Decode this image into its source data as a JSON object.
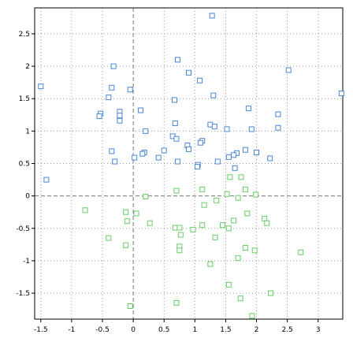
{
  "chart_data": {
    "type": "scatter",
    "title": "",
    "xlabel": "",
    "ylabel": "",
    "xlim": [
      -1.6,
      3.4
    ],
    "ylim": [
      -1.9,
      2.9
    ],
    "x_ticks": [
      -1.5,
      -1,
      -0.5,
      0,
      0.5,
      1,
      1.5,
      2,
      2.5,
      3
    ],
    "x_tick_labels": [
      "-1.5",
      "-1",
      "-0.5",
      "0",
      "0.5",
      "1",
      "1.5",
      "2",
      "2.5",
      "3"
    ],
    "y_ticks": [
      -1.5,
      -1,
      -0.5,
      0,
      0.5,
      1,
      1.5,
      2,
      2.5
    ],
    "y_tick_labels": [
      "-1.5",
      "-1",
      "-0.5",
      "0",
      "0.5",
      "1",
      "1.5",
      "2",
      "2.5"
    ],
    "grid": true,
    "marker": "square-open",
    "series": [
      {
        "color": "#4a86d4",
        "points": [
          [
            1.28,
            2.78
          ],
          [
            0.72,
            2.1
          ],
          [
            -0.32,
            2.0
          ],
          [
            0.9,
            1.9
          ],
          [
            2.52,
            1.94
          ],
          [
            1.08,
            1.78
          ],
          [
            -1.5,
            1.69
          ],
          [
            -0.35,
            1.67
          ],
          [
            -0.05,
            1.64
          ],
          [
            -0.4,
            1.52
          ],
          [
            1.3,
            1.55
          ],
          [
            3.38,
            1.58
          ],
          [
            0.67,
            1.48
          ],
          [
            1.87,
            1.35
          ],
          [
            0.12,
            1.32
          ],
          [
            -0.22,
            1.3
          ],
          [
            2.35,
            1.26
          ],
          [
            -0.22,
            1.24
          ],
          [
            -0.53,
            1.27
          ],
          [
            -0.55,
            1.23
          ],
          [
            -0.22,
            1.16
          ],
          [
            0.68,
            1.12
          ],
          [
            1.25,
            1.1
          ],
          [
            1.32,
            1.07
          ],
          [
            1.52,
            1.03
          ],
          [
            2.35,
            1.05
          ],
          [
            1.92,
            1.03
          ],
          [
            0.2,
            1.0
          ],
          [
            0.64,
            0.92
          ],
          [
            0.7,
            0.88
          ],
          [
            1.12,
            0.85
          ],
          [
            1.09,
            0.82
          ],
          [
            0.88,
            0.78
          ],
          [
            0.9,
            0.72
          ],
          [
            1.82,
            0.71
          ],
          [
            0.5,
            0.7
          ],
          [
            2.0,
            0.67
          ],
          [
            1.68,
            0.66
          ],
          [
            1.63,
            0.63
          ],
          [
            1.55,
            0.6
          ],
          [
            0.18,
            0.67
          ],
          [
            0.15,
            0.65
          ],
          [
            0.02,
            0.59
          ],
          [
            0.41,
            0.59
          ],
          [
            0.72,
            0.53
          ],
          [
            1.05,
            0.48
          ],
          [
            1.04,
            0.45
          ],
          [
            1.37,
            0.53
          ],
          [
            1.65,
            0.43
          ],
          [
            2.22,
            0.58
          ],
          [
            -0.35,
            0.69
          ],
          [
            -0.3,
            0.53
          ],
          [
            -1.41,
            0.25
          ]
        ]
      },
      {
        "color": "#66cc66",
        "points": [
          [
            1.57,
            0.29
          ],
          [
            1.75,
            0.29
          ],
          [
            0.7,
            0.08
          ],
          [
            1.12,
            0.1
          ],
          [
            1.82,
            0.1
          ],
          [
            1.52,
            0.03
          ],
          [
            1.99,
            0.02
          ],
          [
            0.2,
            -0.01
          ],
          [
            1.35,
            -0.07
          ],
          [
            1.7,
            -0.03
          ],
          [
            1.15,
            -0.14
          ],
          [
            -0.78,
            -0.22
          ],
          [
            -0.12,
            -0.25
          ],
          [
            0.05,
            -0.27
          ],
          [
            1.85,
            -0.27
          ],
          [
            2.13,
            -0.35
          ],
          [
            2.17,
            -0.42
          ],
          [
            1.63,
            -0.38
          ],
          [
            -0.1,
            -0.39
          ],
          [
            0.27,
            -0.42
          ],
          [
            0.68,
            -0.49
          ],
          [
            0.75,
            -0.49
          ],
          [
            1.12,
            -0.45
          ],
          [
            1.45,
            -0.45
          ],
          [
            1.55,
            -0.5
          ],
          [
            0.97,
            -0.52
          ],
          [
            0.77,
            -0.6
          ],
          [
            -0.4,
            -0.65
          ],
          [
            1.33,
            -0.64
          ],
          [
            -0.12,
            -0.76
          ],
          [
            0.75,
            -0.78
          ],
          [
            0.75,
            -0.84
          ],
          [
            1.82,
            -0.8
          ],
          [
            1.97,
            -0.84
          ],
          [
            2.72,
            -0.87
          ],
          [
            1.7,
            -0.96
          ],
          [
            1.25,
            -1.05
          ],
          [
            1.55,
            -1.37
          ],
          [
            2.23,
            -1.5
          ],
          [
            1.74,
            -1.58
          ],
          [
            0.7,
            -1.65
          ],
          [
            -0.05,
            -1.7
          ],
          [
            1.93,
            -1.85
          ]
        ]
      }
    ]
  }
}
